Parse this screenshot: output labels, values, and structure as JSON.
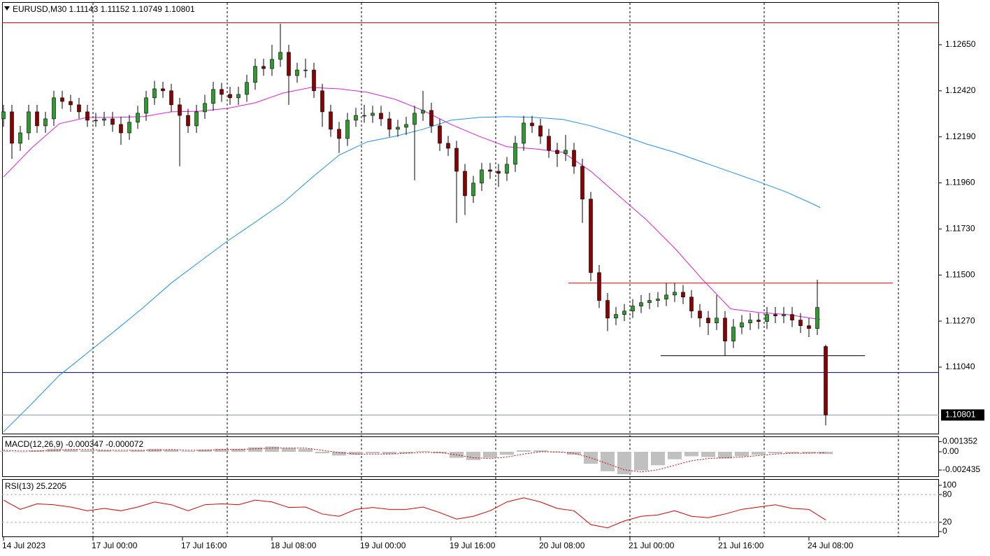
{
  "chart_data": [
    {
      "type": "candlestick",
      "title": "EURUSD,M30  1.11143 1.11152 1.10749 1.10801",
      "bull_color": "#2e9b2e",
      "bear_color": "#8b0000",
      "wick_color": "#000000",
      "xlim": [
        -0.5,
        334.5
      ],
      "xticks": [
        {
          "value": 0,
          "label": "14 Jul 2023"
        },
        {
          "value": 32,
          "label": "17 Jul 00:00"
        },
        {
          "value": 64,
          "label": "17 Jul 16:00"
        },
        {
          "value": 96,
          "label": "18 Jul 08:00"
        },
        {
          "value": 128,
          "label": "19 Jul 00:00"
        },
        {
          "value": 160,
          "label": "19 Jul 16:00"
        },
        {
          "value": 192,
          "label": "20 Jul 08:00"
        },
        {
          "value": 224,
          "label": "21 Jul 00:00"
        },
        {
          "value": 256,
          "label": "21 Jul 16:00"
        },
        {
          "value": 288,
          "label": "24 Jul 08:00"
        }
      ],
      "xgrid": [
        32,
        80,
        128,
        176,
        224,
        272,
        320
      ],
      "ylim": [
        1.10708,
        1.12863
      ],
      "yticks": [
        {
          "value": 1.1265,
          "label": "1.12650"
        },
        {
          "value": 1.1242,
          "label": "1.12420"
        },
        {
          "value": 1.1219,
          "label": "1.12190"
        },
        {
          "value": 1.1196,
          "label": "1.11960"
        },
        {
          "value": 1.1173,
          "label": "1.11730"
        },
        {
          "value": 1.115,
          "label": "1.11500"
        },
        {
          "value": 1.1127,
          "label": "1.11270"
        },
        {
          "value": 1.1104,
          "label": "1.11040"
        }
      ],
      "last_price": {
        "value": 1.10801,
        "label": "1.10801",
        "color": "#8a9aa8"
      },
      "levels": [
        {
          "value": 1.1276,
          "color": "#e00000"
        },
        {
          "value": 1.1146,
          "color": "#e00000",
          "x": [
            202,
            318
          ]
        },
        {
          "value": 1.11097,
          "color": "#000000",
          "x": [
            235,
            308
          ]
        },
        {
          "value": 1.11013,
          "color": "#000080"
        }
      ],
      "x": [
        0,
        3,
        6,
        9,
        12,
        15,
        18,
        21,
        24,
        27,
        30,
        33,
        36,
        39,
        42,
        45,
        48,
        51,
        54,
        57,
        60,
        63,
        66,
        69,
        72,
        75,
        78,
        81,
        84,
        87,
        90,
        93,
        96,
        99,
        102,
        105,
        108,
        111,
        114,
        117,
        120,
        123,
        126,
        129,
        132,
        135,
        138,
        141,
        144,
        147,
        150,
        153,
        156,
        159,
        162,
        165,
        168,
        171,
        174,
        177,
        180,
        183,
        186,
        189,
        192,
        195,
        198,
        201,
        204,
        207,
        210,
        213,
        216,
        219,
        222,
        225,
        228,
        231,
        234,
        237,
        240,
        243,
        246,
        249,
        252,
        255,
        258,
        261,
        264,
        267,
        270,
        273,
        276,
        279,
        282,
        285,
        288,
        291,
        294
      ],
      "ohlc": [
        [
          1.1228,
          1.1235,
          1.1224,
          1.12315
        ],
        [
          1.12315,
          1.1235,
          1.1208,
          1.12158
        ],
        [
          1.12158,
          1.12245,
          1.1212,
          1.1221
        ],
        [
          1.1221,
          1.1235,
          1.12175,
          1.12315
        ],
        [
          1.12315,
          1.1235,
          1.1221,
          1.12245
        ],
        [
          1.12245,
          1.12315,
          1.1221,
          1.1228
        ],
        [
          1.1228,
          1.1242,
          1.12245,
          1.12385
        ],
        [
          1.12385,
          1.1242,
          1.1233,
          1.12367
        ],
        [
          1.12367,
          1.124,
          1.12315,
          1.1235
        ],
        [
          1.1235,
          1.12385,
          1.1228,
          1.12315
        ],
        [
          1.12315,
          1.1235,
          1.1224,
          1.12273
        ],
        [
          1.12273,
          1.1231,
          1.1224,
          1.12273
        ],
        [
          1.12273,
          1.12315,
          1.12245,
          1.1228
        ],
        [
          1.1228,
          1.12315,
          1.12215,
          1.12252
        ],
        [
          1.12252,
          1.1229,
          1.1215,
          1.1221
        ],
        [
          1.1221,
          1.123,
          1.12175,
          1.12263
        ],
        [
          1.12263,
          1.12345,
          1.1223,
          1.12308
        ],
        [
          1.12308,
          1.1242,
          1.1227,
          1.12385
        ],
        [
          1.12385,
          1.1247,
          1.1235,
          1.1243
        ],
        [
          1.1243,
          1.12465,
          1.12385,
          1.1242
        ],
        [
          1.1242,
          1.12455,
          1.12315,
          1.1235
        ],
        [
          1.1235,
          1.12385,
          1.12043,
          1.12297
        ],
        [
          1.12297,
          1.1233,
          1.1221,
          1.12245
        ],
        [
          1.12245,
          1.1235,
          1.1221,
          1.12315
        ],
        [
          1.12315,
          1.124,
          1.1228,
          1.12357
        ],
        [
          1.12357,
          1.12465,
          1.1232,
          1.12427
        ],
        [
          1.12427,
          1.1246,
          1.12365,
          1.12402
        ],
        [
          1.12402,
          1.1244,
          1.1235,
          1.12385
        ],
        [
          1.12385,
          1.1244,
          1.1235,
          1.12402
        ],
        [
          1.12402,
          1.125,
          1.12365,
          1.12462
        ],
        [
          1.12462,
          1.1258,
          1.12425,
          1.12542
        ],
        [
          1.12542,
          1.1258,
          1.12495,
          1.12531
        ],
        [
          1.12531,
          1.1265,
          1.12495,
          1.12577
        ],
        [
          1.12577,
          1.12755,
          1.1254,
          1.12612
        ],
        [
          1.12612,
          1.1265,
          1.1235,
          1.12496
        ],
        [
          1.12496,
          1.1256,
          1.1246,
          1.12524
        ],
        [
          1.12524,
          1.1258,
          1.12485,
          1.12524
        ],
        [
          1.12524,
          1.1256,
          1.12385,
          1.1242
        ],
        [
          1.1242,
          1.12455,
          1.1224,
          1.12315
        ],
        [
          1.12315,
          1.1235,
          1.1219,
          1.12228
        ],
        [
          1.12228,
          1.12265,
          1.1211,
          1.12182
        ],
        [
          1.12182,
          1.1231,
          1.12145,
          1.12273
        ],
        [
          1.12273,
          1.12335,
          1.1224,
          1.12297
        ],
        [
          1.12297,
          1.1235,
          1.1226,
          1.12297
        ],
        [
          1.12297,
          1.12345,
          1.1226,
          1.12308
        ],
        [
          1.12308,
          1.12345,
          1.12245,
          1.1228
        ],
        [
          1.1228,
          1.12315,
          1.1219,
          1.12228
        ],
        [
          1.12228,
          1.12275,
          1.1219,
          1.12238
        ],
        [
          1.12238,
          1.1229,
          1.122,
          1.12252
        ],
        [
          1.12252,
          1.12345,
          1.11973,
          1.12308
        ],
        [
          1.12308,
          1.1242,
          1.1227,
          1.12322
        ],
        [
          1.12322,
          1.1236,
          1.1221,
          1.12245
        ],
        [
          1.12245,
          1.1228,
          1.1212,
          1.12158
        ],
        [
          1.12158,
          1.12195,
          1.12095,
          1.12133
        ],
        [
          1.12133,
          1.1217,
          1.1176,
          1.12018
        ],
        [
          1.12018,
          1.12055,
          1.118,
          1.11896
        ],
        [
          1.11896,
          1.11995,
          1.1186,
          1.11959
        ],
        [
          1.11959,
          1.1206,
          1.1192,
          1.12025
        ],
        [
          1.12025,
          1.1206,
          1.1198,
          1.12018
        ],
        [
          1.12018,
          1.12055,
          1.1194,
          1.12008
        ],
        [
          1.12008,
          1.1209,
          1.1197,
          1.12053
        ],
        [
          1.12053,
          1.12195,
          1.12015,
          1.12158
        ],
        [
          1.12158,
          1.12295,
          1.1212,
          1.12259
        ],
        [
          1.12259,
          1.12295,
          1.1221,
          1.12245
        ],
        [
          1.12245,
          1.1228,
          1.12155,
          1.12193
        ],
        [
          1.12193,
          1.1223,
          1.12085,
          1.12123
        ],
        [
          1.12123,
          1.1216,
          1.1204,
          1.12106
        ],
        [
          1.12106,
          1.122,
          1.1207,
          1.12123
        ],
        [
          1.12123,
          1.1216,
          1.12005,
          1.12043
        ],
        [
          1.12043,
          1.1208,
          1.1176,
          1.11879
        ],
        [
          1.11879,
          1.11915,
          1.1147,
          1.11512
        ],
        [
          1.11512,
          1.1155,
          1.11335,
          1.11373
        ],
        [
          1.11373,
          1.1141,
          1.1122,
          1.11285
        ],
        [
          1.11285,
          1.1134,
          1.1125,
          1.11303
        ],
        [
          1.11303,
          1.11355,
          1.1127,
          1.1132
        ],
        [
          1.1132,
          1.1138,
          1.11285,
          1.11345
        ],
        [
          1.11345,
          1.114,
          1.1131,
          1.11362
        ],
        [
          1.11362,
          1.1141,
          1.1133,
          1.11373
        ],
        [
          1.11373,
          1.11415,
          1.1134,
          1.1138
        ],
        [
          1.1138,
          1.1146,
          1.11345,
          1.114
        ],
        [
          1.114,
          1.1146,
          1.11365,
          1.11414
        ],
        [
          1.11414,
          1.1145,
          1.11355,
          1.1139
        ],
        [
          1.1139,
          1.11425,
          1.11285,
          1.1132
        ],
        [
          1.1132,
          1.11355,
          1.1124,
          1.11285
        ],
        [
          1.11285,
          1.1132,
          1.112,
          1.11261
        ],
        [
          1.11261,
          1.114,
          1.11225,
          1.11285
        ],
        [
          1.11285,
          1.1132,
          1.11097,
          1.1117
        ],
        [
          1.1117,
          1.1128,
          1.11135,
          1.1124
        ],
        [
          1.1124,
          1.113,
          1.11205,
          1.11261
        ],
        [
          1.11261,
          1.1131,
          1.11225,
          1.11275
        ],
        [
          1.11275,
          1.1131,
          1.1123,
          1.11268
        ],
        [
          1.11268,
          1.1134,
          1.1123,
          1.11303
        ],
        [
          1.11303,
          1.1134,
          1.1126,
          1.11296
        ],
        [
          1.11296,
          1.1134,
          1.1126,
          1.11303
        ],
        [
          1.11303,
          1.1134,
          1.1124,
          1.11275
        ],
        [
          1.11275,
          1.1131,
          1.1121,
          1.11247
        ],
        [
          1.11247,
          1.11285,
          1.1119,
          1.11233
        ],
        [
          1.11233,
          1.11477,
          1.112,
          1.11338
        ],
        [
          1.11143,
          1.11152,
          1.10749,
          1.10801
        ]
      ],
      "lines": [
        {
          "color": "#e020e0",
          "x": [
            0,
            10,
            20,
            30,
            40,
            50,
            60,
            70,
            80,
            90,
            100,
            110,
            120,
            130,
            140,
            150,
            160,
            170,
            180,
            190,
            200,
            210,
            220,
            230,
            240,
            250,
            260,
            270,
            280,
            290,
            292
          ],
          "values": [
            1.1199,
            1.12134,
            1.12256,
            1.12287,
            1.12287,
            1.12291,
            1.12315,
            1.12318,
            1.12332,
            1.1236,
            1.12409,
            1.12437,
            1.1243,
            1.12413,
            1.12378,
            1.12322,
            1.12252,
            1.12193,
            1.12141,
            1.1213,
            1.12113,
            1.12018,
            1.11896,
            1.11774,
            1.11634,
            1.11477,
            1.11331,
            1.11313,
            1.11303,
            1.11282,
            1.11278
          ]
        },
        {
          "color": "#1e90ff",
          "x": [
            0,
            10,
            20,
            30,
            40,
            50,
            60,
            70,
            80,
            90,
            100,
            110,
            120,
            130,
            140,
            150,
            160,
            170,
            180,
            190,
            200,
            210,
            220,
            230,
            240,
            250,
            260,
            270,
            280,
            290,
            292
          ],
          "values": [
            1.10717,
            1.10856,
            1.10999,
            1.11111,
            1.11223,
            1.11338,
            1.1146,
            1.11565,
            1.11669,
            1.11764,
            1.11861,
            1.11983,
            1.12099,
            1.12165,
            1.12193,
            1.12228,
            1.12273,
            1.12287,
            1.12291,
            1.12287,
            1.12277,
            1.12245,
            1.12203,
            1.12154,
            1.12113,
            1.12064,
            1.12015,
            1.11966,
            1.11914,
            1.11851,
            1.11837
          ]
        }
      ]
    },
    {
      "type": "macd",
      "title": "MACD(12,26,9) -0.000347 -0.000072",
      "hist_color": "#c0c0c0",
      "signal_color": "#d00000",
      "ylim": [
        -0.00327,
        0.00196
      ],
      "yticks": [
        0.001352,
        {
          "value": 0,
          "label": "0.00"
        },
        -0.002435
      ],
      "x": [
        0,
        6,
        12,
        18,
        24,
        30,
        36,
        42,
        48,
        54,
        60,
        66,
        72,
        78,
        84,
        90,
        96,
        102,
        108,
        114,
        120,
        126,
        132,
        138,
        144,
        150,
        156,
        162,
        168,
        174,
        180,
        186,
        192,
        198,
        204,
        210,
        216,
        222,
        228,
        234,
        240,
        246,
        252,
        258,
        264,
        270,
        276,
        282,
        288,
        294
      ],
      "histogram": [
        0.0001,
        0,
        0.0002,
        0.0004,
        0.0003,
        0.0002,
        0.0002,
        0.0001,
        0.0002,
        0.0004,
        0.0003,
        0.0001,
        0.0003,
        0.0004,
        0.0004,
        0.0006,
        0.0007,
        0.0005,
        0.0004,
        -0.0002,
        -0.0005,
        -0.0004,
        -0.0002,
        -0.0003,
        -0.0002,
        0.0001,
        -0.0002,
        -0.0008,
        -0.0011,
        -0.0008,
        -0.0004,
        0.0002,
        0.0002,
        -0.0001,
        -0.0004,
        -0.0016,
        -0.0026,
        -0.003,
        -0.0025,
        -0.0018,
        -0.001,
        -0.0006,
        -0.0007,
        -0.0009,
        -0.0006,
        -0.0004,
        -0.0002,
        -0.0002,
        -0.0002,
        -0.0003
      ],
      "signal": [
        0.0002,
        0.0001,
        0.0001,
        0.0002,
        0.0003,
        0.0003,
        0.0002,
        0.0002,
        0.0002,
        0.0002,
        0.0003,
        0.0002,
        0.0002,
        0.0003,
        0.0003,
        0.0004,
        0.0005,
        0.0005,
        0.0005,
        0.0002,
        -0.0001,
        -0.0003,
        -0.0003,
        -0.0003,
        -0.0002,
        -0.0001,
        -0.0001,
        -0.0004,
        -0.0008,
        -0.0009,
        -0.0007,
        -0.0003,
        0,
        0,
        -0.0002,
        -0.0008,
        -0.0016,
        -0.0024,
        -0.0027,
        -0.0024,
        -0.0018,
        -0.0012,
        -0.0009,
        -0.0008,
        -0.0007,
        -0.0005,
        -0.0003,
        -0.0002,
        -0.0002,
        -0.0001
      ]
    },
    {
      "type": "rsi",
      "title": "RSI(13) 25.2205",
      "color": "#e00000",
      "ylim": [
        -12,
        112
      ],
      "yticks": [
        100,
        80,
        20,
        0
      ],
      "levels": [
        80,
        20
      ],
      "x": [
        0,
        6,
        12,
        18,
        24,
        30,
        36,
        42,
        48,
        54,
        60,
        66,
        72,
        78,
        84,
        90,
        96,
        102,
        108,
        114,
        120,
        126,
        132,
        138,
        144,
        150,
        156,
        162,
        168,
        174,
        180,
        186,
        192,
        198,
        204,
        210,
        216,
        222,
        228,
        234,
        240,
        246,
        252,
        258,
        264,
        270,
        276,
        282,
        288,
        294
      ],
      "values": [
        68,
        48,
        60,
        58,
        53,
        45,
        50,
        45,
        53,
        64,
        58,
        45,
        58,
        60,
        58,
        68,
        64,
        52,
        53,
        38,
        33,
        48,
        52,
        48,
        48,
        53,
        41,
        27,
        33,
        45,
        64,
        73,
        64,
        50,
        45,
        15,
        8,
        23,
        33,
        36,
        45,
        33,
        30,
        38,
        48,
        53,
        58,
        50,
        48,
        25
      ]
    }
  ]
}
